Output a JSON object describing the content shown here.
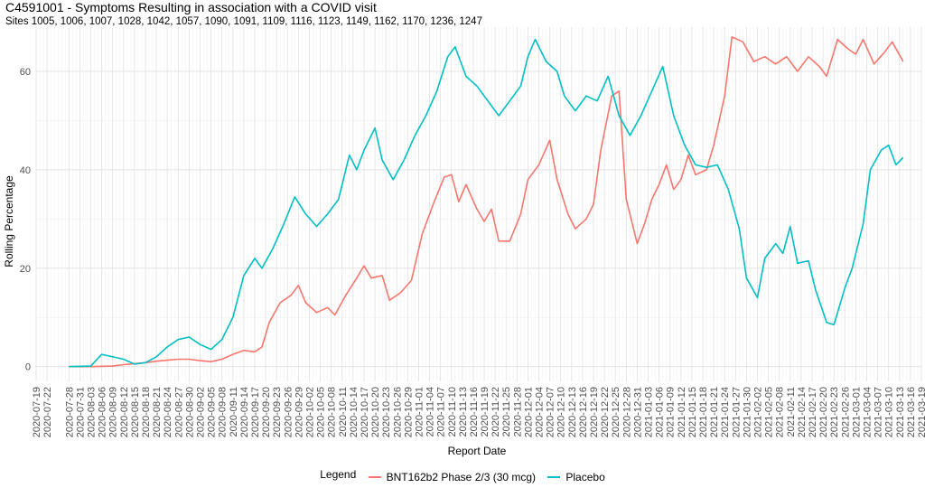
{
  "title": "C4591001 - Symptoms Resulting in association with a COVID visit",
  "subtitle": "Sites 1005, 1006, 1007, 1028, 1042, 1057, 1090, 1091, 1109, 1116, 1123, 1149, 1162, 1170, 1236, 1247",
  "legend": {
    "title": "Legend",
    "items": [
      {
        "label": "BNT162b2 Phase 2/3 (30 mcg)",
        "color": "#F8766D"
      },
      {
        "label": "Placebo",
        "color": "#00BFC4"
      }
    ]
  },
  "chart_data": {
    "type": "line",
    "xlabel": "Report Date",
    "ylabel": "Rolling Percentage",
    "ylim": [
      -3,
      69
    ],
    "yticks": [
      0,
      20,
      40,
      60
    ],
    "xlim": [
      "2020-07-19",
      "2021-03-19"
    ],
    "grid": true,
    "legend_position": "bottom",
    "xtick_labels": [
      "2020-07-19",
      "2020-07-22",
      "2020-07-28",
      "2020-07-31",
      "2020-08-03",
      "2020-08-06",
      "2020-08-09",
      "2020-08-12",
      "2020-08-15",
      "2020-08-18",
      "2020-08-21",
      "2020-08-24",
      "2020-08-27",
      "2020-08-30",
      "2020-09-02",
      "2020-09-05",
      "2020-09-08",
      "2020-09-11",
      "2020-09-14",
      "2020-09-17",
      "2020-09-20",
      "2020-09-23",
      "2020-09-26",
      "2020-09-29",
      "2020-10-02",
      "2020-10-05",
      "2020-10-08",
      "2020-10-11",
      "2020-10-14",
      "2020-10-17",
      "2020-10-20",
      "2020-10-23",
      "2020-10-26",
      "2020-10-29",
      "2020-11-01",
      "2020-11-04",
      "2020-11-07",
      "2020-11-10",
      "2020-11-13",
      "2020-11-16",
      "2020-11-19",
      "2020-11-22",
      "2020-11-25",
      "2020-11-28",
      "2020-12-01",
      "2020-12-04",
      "2020-12-07",
      "2020-12-10",
      "2020-12-13",
      "2020-12-16",
      "2020-12-19",
      "2020-12-22",
      "2020-12-25",
      "2020-12-28",
      "2020-12-31",
      "2021-01-03",
      "2021-01-06",
      "2021-01-09",
      "2021-01-12",
      "2021-01-15",
      "2021-01-18",
      "2021-01-21",
      "2021-01-24",
      "2021-01-27",
      "2021-01-30",
      "2021-02-02",
      "2021-02-05",
      "2021-02-08",
      "2021-02-11",
      "2021-02-14",
      "2021-02-17",
      "2021-02-20",
      "2021-02-23",
      "2021-02-26",
      "2021-03-01",
      "2021-03-04",
      "2021-03-07",
      "2021-03-10",
      "2021-03-13",
      "2021-03-16",
      "2021-03-19"
    ],
    "series": [
      {
        "name": "BNT162b2 Phase 2/3 (30 mcg)",
        "color": "#F8766D",
        "points": [
          [
            "2020-07-28",
            0
          ],
          [
            "2020-08-03",
            0
          ],
          [
            "2020-08-09",
            0.1
          ],
          [
            "2020-08-12",
            0.4
          ],
          [
            "2020-08-15",
            0.6
          ],
          [
            "2020-08-18",
            0.8
          ],
          [
            "2020-08-21",
            1.1
          ],
          [
            "2020-08-24",
            1.3
          ],
          [
            "2020-08-27",
            1.5
          ],
          [
            "2020-08-30",
            1.5
          ],
          [
            "2020-09-02",
            1.2
          ],
          [
            "2020-09-05",
            1.0
          ],
          [
            "2020-09-08",
            1.5
          ],
          [
            "2020-09-11",
            2.5
          ],
          [
            "2020-09-14",
            3.3
          ],
          [
            "2020-09-17",
            3.0
          ],
          [
            "2020-09-19",
            4.0
          ],
          [
            "2020-09-21",
            9.0
          ],
          [
            "2020-09-24",
            13.0
          ],
          [
            "2020-09-27",
            14.5
          ],
          [
            "2020-09-29",
            16.5
          ],
          [
            "2020-10-01",
            13.0
          ],
          [
            "2020-10-04",
            11.0
          ],
          [
            "2020-10-07",
            12.0
          ],
          [
            "2020-10-09",
            10.5
          ],
          [
            "2020-10-12",
            14.5
          ],
          [
            "2020-10-15",
            18.0
          ],
          [
            "2020-10-17",
            20.5
          ],
          [
            "2020-10-19",
            18.0
          ],
          [
            "2020-10-22",
            18.5
          ],
          [
            "2020-10-24",
            13.5
          ],
          [
            "2020-10-27",
            15.0
          ],
          [
            "2020-10-30",
            17.5
          ],
          [
            "2020-11-02",
            27.0
          ],
          [
            "2020-11-05",
            33.0
          ],
          [
            "2020-11-08",
            38.5
          ],
          [
            "2020-11-10",
            39.0
          ],
          [
            "2020-11-12",
            33.5
          ],
          [
            "2020-11-14",
            37.0
          ],
          [
            "2020-11-17",
            32.0
          ],
          [
            "2020-11-19",
            29.5
          ],
          [
            "2020-11-21",
            32.0
          ],
          [
            "2020-11-23",
            25.5
          ],
          [
            "2020-11-26",
            25.5
          ],
          [
            "2020-11-29",
            31.0
          ],
          [
            "2020-12-01",
            38.0
          ],
          [
            "2020-12-04",
            41.0
          ],
          [
            "2020-12-07",
            46.0
          ],
          [
            "2020-12-09",
            38.0
          ],
          [
            "2020-12-12",
            31.0
          ],
          [
            "2020-12-14",
            28.0
          ],
          [
            "2020-12-17",
            30.0
          ],
          [
            "2020-12-19",
            33.0
          ],
          [
            "2020-12-21",
            44.0
          ],
          [
            "2020-12-24",
            55.0
          ],
          [
            "2020-12-26",
            56.0
          ],
          [
            "2020-12-28",
            34.0
          ],
          [
            "2020-12-31",
            25.0
          ],
          [
            "2021-01-02",
            29.0
          ],
          [
            "2021-01-04",
            34.0
          ],
          [
            "2021-01-06",
            37.0
          ],
          [
            "2021-01-08",
            41.0
          ],
          [
            "2021-01-10",
            36.0
          ],
          [
            "2021-01-12",
            38.0
          ],
          [
            "2021-01-14",
            43.0
          ],
          [
            "2021-01-16",
            39.0
          ],
          [
            "2021-01-19",
            40.0
          ],
          [
            "2021-01-21",
            45.0
          ],
          [
            "2021-01-24",
            55.0
          ],
          [
            "2021-01-26",
            67.0
          ],
          [
            "2021-01-29",
            66.0
          ],
          [
            "2021-02-01",
            62.0
          ],
          [
            "2021-02-04",
            63.0
          ],
          [
            "2021-02-07",
            61.5
          ],
          [
            "2021-02-10",
            63.0
          ],
          [
            "2021-02-13",
            60.0
          ],
          [
            "2021-02-16",
            63.0
          ],
          [
            "2021-02-19",
            61.0
          ],
          [
            "2021-02-21",
            59.0
          ],
          [
            "2021-02-24",
            66.5
          ],
          [
            "2021-02-27",
            64.5
          ],
          [
            "2021-03-01",
            63.5
          ],
          [
            "2021-03-03",
            66.5
          ],
          [
            "2021-03-06",
            61.5
          ],
          [
            "2021-03-09",
            64.0
          ],
          [
            "2021-03-11",
            66.0
          ],
          [
            "2021-03-14",
            62.0
          ]
        ]
      },
      {
        "name": "Placebo",
        "color": "#00BFC4",
        "points": [
          [
            "2020-07-28",
            0
          ],
          [
            "2020-08-03",
            0.1
          ],
          [
            "2020-08-06",
            2.5
          ],
          [
            "2020-08-09",
            2.0
          ],
          [
            "2020-08-12",
            1.5
          ],
          [
            "2020-08-15",
            0.5
          ],
          [
            "2020-08-18",
            0.8
          ],
          [
            "2020-08-21",
            2.0
          ],
          [
            "2020-08-24",
            4.0
          ],
          [
            "2020-08-27",
            5.5
          ],
          [
            "2020-08-30",
            6.0
          ],
          [
            "2020-09-02",
            4.5
          ],
          [
            "2020-09-05",
            3.5
          ],
          [
            "2020-09-08",
            5.5
          ],
          [
            "2020-09-11",
            10.0
          ],
          [
            "2020-09-14",
            18.5
          ],
          [
            "2020-09-17",
            22.0
          ],
          [
            "2020-09-19",
            20.0
          ],
          [
            "2020-09-22",
            24.0
          ],
          [
            "2020-09-25",
            29.0
          ],
          [
            "2020-09-28",
            34.5
          ],
          [
            "2020-10-01",
            31.0
          ],
          [
            "2020-10-04",
            28.5
          ],
          [
            "2020-10-07",
            31.0
          ],
          [
            "2020-10-10",
            34.0
          ],
          [
            "2020-10-13",
            43.0
          ],
          [
            "2020-10-15",
            40.0
          ],
          [
            "2020-10-17",
            44.0
          ],
          [
            "2020-10-20",
            48.5
          ],
          [
            "2020-10-22",
            42.0
          ],
          [
            "2020-10-25",
            38.0
          ],
          [
            "2020-10-28",
            42.0
          ],
          [
            "2020-10-31",
            47.0
          ],
          [
            "2020-11-03",
            51.0
          ],
          [
            "2020-11-06",
            56.0
          ],
          [
            "2020-11-09",
            63.0
          ],
          [
            "2020-11-11",
            65.0
          ],
          [
            "2020-11-14",
            59.0
          ],
          [
            "2020-11-17",
            57.0
          ],
          [
            "2020-11-20",
            54.0
          ],
          [
            "2020-11-23",
            51.0
          ],
          [
            "2020-11-26",
            54.0
          ],
          [
            "2020-11-29",
            57.0
          ],
          [
            "2020-12-01",
            63.0
          ],
          [
            "2020-12-03",
            66.5
          ],
          [
            "2020-12-06",
            62.0
          ],
          [
            "2020-12-09",
            60.0
          ],
          [
            "2020-12-11",
            55.0
          ],
          [
            "2020-12-14",
            52.0
          ],
          [
            "2020-12-17",
            55.0
          ],
          [
            "2020-12-20",
            54.0
          ],
          [
            "2020-12-23",
            59.0
          ],
          [
            "2020-12-26",
            51.0
          ],
          [
            "2020-12-29",
            47.0
          ],
          [
            "2021-01-01",
            51.0
          ],
          [
            "2021-01-04",
            56.0
          ],
          [
            "2021-01-07",
            61.0
          ],
          [
            "2021-01-10",
            51.0
          ],
          [
            "2021-01-13",
            45.0
          ],
          [
            "2021-01-16",
            41.0
          ],
          [
            "2021-01-19",
            40.5
          ],
          [
            "2021-01-22",
            41.0
          ],
          [
            "2021-01-25",
            36.0
          ],
          [
            "2021-01-28",
            28.0
          ],
          [
            "2021-01-30",
            18.0
          ],
          [
            "2021-02-02",
            14.0
          ],
          [
            "2021-02-04",
            22.0
          ],
          [
            "2021-02-07",
            25.0
          ],
          [
            "2021-02-09",
            23.0
          ],
          [
            "2021-02-11",
            28.5
          ],
          [
            "2021-02-13",
            21.0
          ],
          [
            "2021-02-16",
            21.5
          ],
          [
            "2021-02-18",
            15.5
          ],
          [
            "2021-02-21",
            9.0
          ],
          [
            "2021-02-23",
            8.5
          ],
          [
            "2021-02-26",
            16.0
          ],
          [
            "2021-02-28",
            20.0
          ],
          [
            "2021-03-03",
            29.0
          ],
          [
            "2021-03-05",
            40.0
          ],
          [
            "2021-03-08",
            44.0
          ],
          [
            "2021-03-10",
            45.0
          ],
          [
            "2021-03-12",
            41.0
          ],
          [
            "2021-03-14",
            42.5
          ]
        ]
      }
    ]
  }
}
